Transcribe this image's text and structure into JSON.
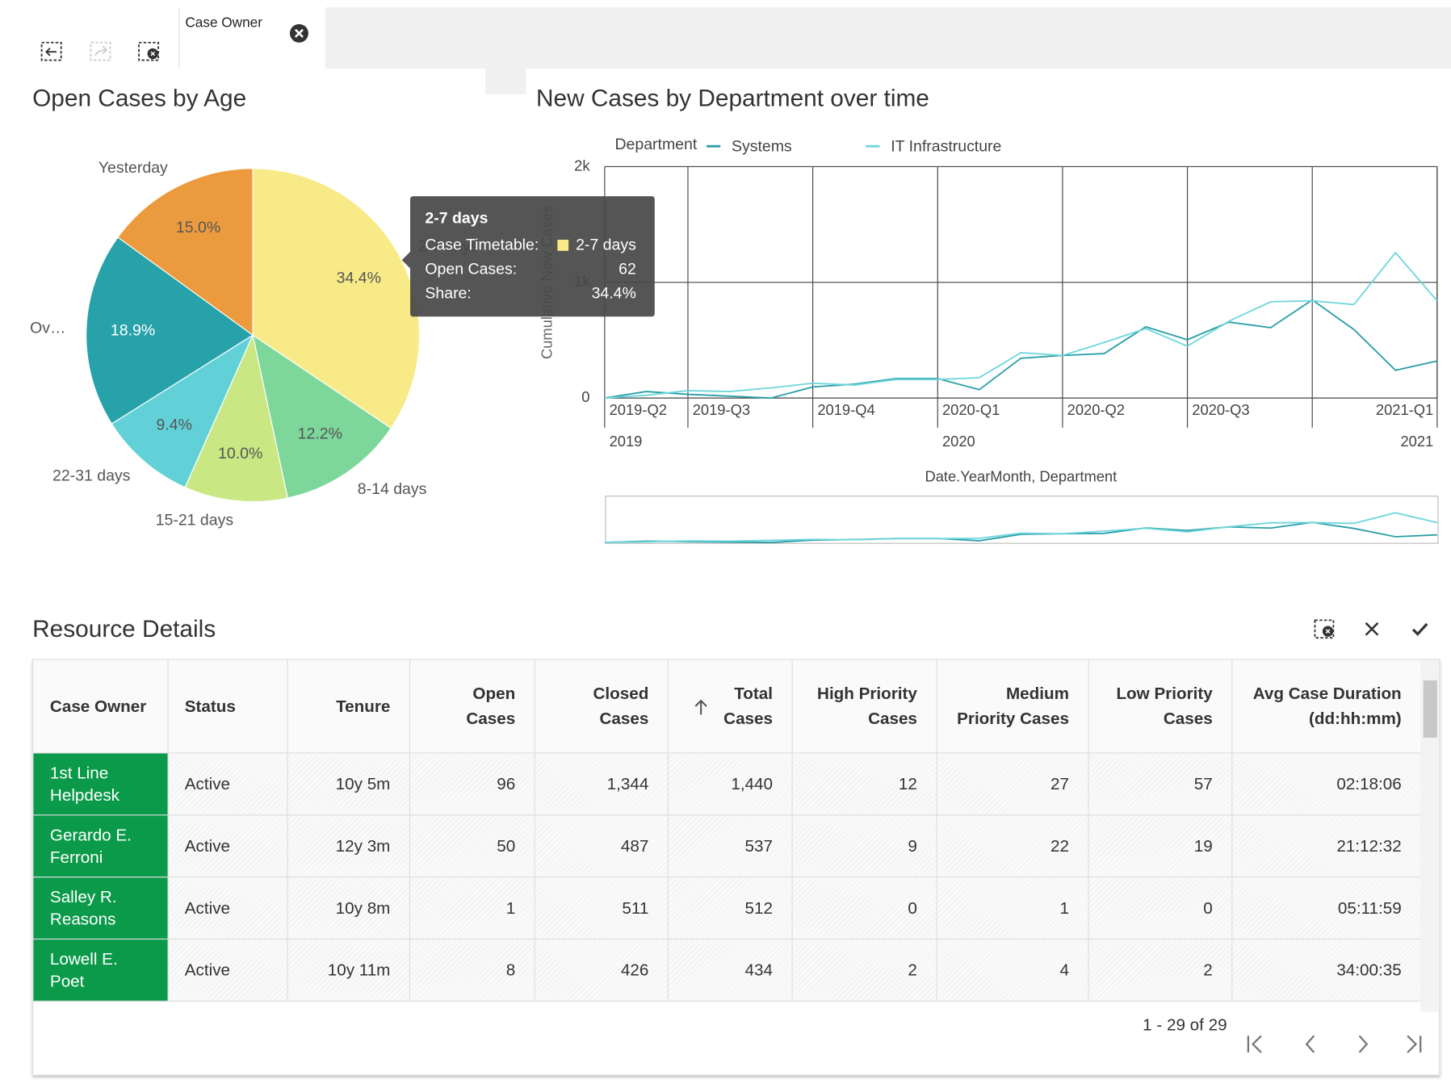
{
  "toolbar": {
    "tab": "Case Owner"
  },
  "chart_data": [
    {
      "type": "pie",
      "title": "Open Cases by Age",
      "categories": [
        "2-7 days",
        "8-14 days",
        "15-21 days",
        "22-31 days",
        "Ov…",
        "Yesterday"
      ],
      "values": [
        34.4,
        12.2,
        10.0,
        9.4,
        18.9,
        15.0
      ],
      "value_labels": [
        "34.4%",
        "12.2%",
        "10.0%",
        "9.4%",
        "18.9%",
        "15.0%"
      ],
      "colors": [
        "#f7ea87",
        "#7dd79b",
        "#c9e884",
        "#62d1d7",
        "#27a2a9",
        "#ec9a3e"
      ],
      "tooltip": {
        "title": "2-7 days",
        "rows": [
          {
            "label": "Case Timetable:",
            "value": "2-7 days"
          },
          {
            "label": "Open Cases:",
            "value": 62
          },
          {
            "label": "Share:",
            "value": "34.4%"
          }
        ]
      }
    },
    {
      "type": "line",
      "title": "New Cases by Department over time",
      "legend_title": "Department",
      "y_label": "Cumulative New Cases",
      "x_label": "Date.YearMonth, Department",
      "categories": [
        "2019-Q2",
        null,
        "2019-Q3",
        null,
        null,
        "2019-Q4",
        null,
        null,
        "2020-Q1",
        null,
        null,
        "2020-Q2",
        null,
        null,
        "2020-Q3",
        null,
        null,
        null,
        null,
        null,
        "2021-Q1"
      ],
      "years": [
        "2019",
        "2020",
        "2021"
      ],
      "ylim": [
        0,
        2000
      ],
      "yticks": [
        0,
        {
          "value": 1000,
          "label": "1k"
        },
        {
          "value": 2000,
          "label": "2k"
        }
      ],
      "grid": true,
      "series": [
        {
          "name": "Systems",
          "color": "#2a9fa7",
          "values": [
            0,
            56,
            32,
            16,
            0,
            96,
            120,
            168,
            168,
            72,
            344,
            368,
            384,
            616,
            504,
            656,
            608,
            848,
            592,
            240,
            320
          ]
        },
        {
          "name": "IT Infrastructure",
          "color": "#6fd6dc",
          "values": [
            0,
            24,
            64,
            56,
            88,
            128,
            112,
            160,
            160,
            176,
            392,
            368,
            480,
            600,
            448,
            664,
            832,
            840,
            808,
            1256,
            840
          ]
        }
      ]
    }
  ],
  "table": {
    "title": "Resource Details",
    "columns": [
      "Case Owner",
      "Status",
      "Tenure",
      "Open Cases",
      "Closed Cases",
      "Total Cases",
      "High Priority Cases",
      "Medium Priority Cases",
      "Low Priority Cases",
      "Avg Case Duration (dd:hh:mm)"
    ],
    "rows": [
      [
        "1st Line Helpdesk",
        "Active",
        "10y 5m",
        "96",
        "1,344",
        "1,440",
        "12",
        "27",
        "57",
        "02:18:06"
      ],
      [
        "Gerardo E. Ferroni",
        "Active",
        "12y 3m",
        "50",
        "487",
        "537",
        "9",
        "22",
        "19",
        "21:12:32"
      ],
      [
        "Salley R. Reasons",
        "Active",
        "10y 8m",
        "1",
        "511",
        "512",
        "0",
        "1",
        "0",
        "05:11:59"
      ],
      [
        "Lowell E. Poet",
        "Active",
        "10y 11m",
        "8",
        "426",
        "434",
        "2",
        "4",
        "2",
        "34:00:35"
      ]
    ],
    "pagination": "1 - 29 of 29"
  }
}
